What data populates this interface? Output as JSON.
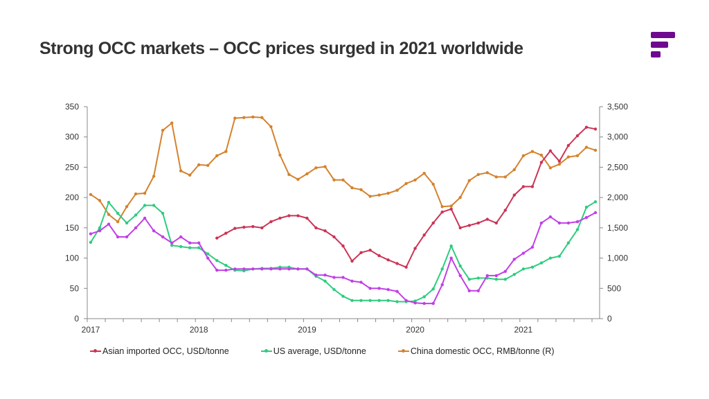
{
  "slide": {
    "title": "Strong OCC markets – OCC prices surged in 2021 worldwide",
    "logo": "brand-logo-icon",
    "brand_color": "#6f0a8f"
  },
  "chart_data": {
    "type": "line",
    "title": "",
    "xlabel": "",
    "ylabel": "",
    "y2label": "",
    "frequency": "monthly",
    "x_start": "2017-01",
    "x_end": "2021-09",
    "x_tick_labels": [
      "2017",
      "2018",
      "2019",
      "2020",
      "2021"
    ],
    "ylim": [
      0,
      350
    ],
    "y_ticks": [
      0,
      50,
      100,
      150,
      200,
      250,
      300,
      350
    ],
    "y_tick_labels": [
      "0",
      "50",
      "100",
      "150",
      "200",
      "250",
      "300",
      "350"
    ],
    "y2lim": [
      0,
      3500
    ],
    "y2_ticks": [
      0,
      500,
      1000,
      1500,
      2000,
      2500,
      3000,
      3500
    ],
    "y2_tick_labels": [
      "0",
      "500",
      "1,000",
      "1,500",
      "2,000",
      "2,500",
      "3,000",
      "3,500"
    ],
    "grid": false,
    "legend_position": "bottom",
    "x": [
      "2017-01",
      "2017-02",
      "2017-03",
      "2017-04",
      "2017-05",
      "2017-06",
      "2017-07",
      "2017-08",
      "2017-09",
      "2017-10",
      "2017-11",
      "2017-12",
      "2018-01",
      "2018-02",
      "2018-03",
      "2018-04",
      "2018-05",
      "2018-06",
      "2018-07",
      "2018-08",
      "2018-09",
      "2018-10",
      "2018-11",
      "2018-12",
      "2019-01",
      "2019-02",
      "2019-03",
      "2019-04",
      "2019-05",
      "2019-06",
      "2019-07",
      "2019-08",
      "2019-09",
      "2019-10",
      "2019-11",
      "2019-12",
      "2020-01",
      "2020-02",
      "2020-03",
      "2020-04",
      "2020-05",
      "2020-06",
      "2020-07",
      "2020-08",
      "2020-09",
      "2020-10",
      "2020-11",
      "2020-12",
      "2021-01",
      "2021-02",
      "2021-03",
      "2021-04",
      "2021-05",
      "2021-06",
      "2021-07",
      "2021-08",
      "2021-09"
    ],
    "series": [
      {
        "name": "China domestic OCC, RMB/tonne (R)",
        "axis": "right",
        "color": "#d4822e",
        "in_legend": true,
        "values": [
          2050,
          1950,
          1720,
          1600,
          1850,
          2060,
          2070,
          2350,
          3110,
          3230,
          2440,
          2370,
          2540,
          2530,
          2690,
          2760,
          3310,
          3320,
          3330,
          3320,
          3170,
          2700,
          2380,
          2300,
          2390,
          2490,
          2510,
          2290,
          2290,
          2160,
          2130,
          2020,
          2040,
          2070,
          2120,
          2230,
          2290,
          2400,
          2220,
          1850,
          1860,
          2000,
          2280,
          2380,
          2410,
          2340,
          2340,
          2460,
          2690,
          2760,
          2700,
          2490,
          2550,
          2670,
          2690,
          2830,
          2780
        ]
      },
      {
        "name": "Asian imported OCC, USD/tonne",
        "axis": "left",
        "color": "#cc3355",
        "in_legend": true,
        "values": [
          null,
          null,
          null,
          null,
          null,
          null,
          null,
          null,
          null,
          null,
          null,
          null,
          null,
          null,
          133,
          141,
          149,
          151,
          152,
          150,
          160,
          166,
          170,
          170,
          166,
          150,
          145,
          135,
          120,
          95,
          109,
          113,
          104,
          97,
          91,
          85,
          116,
          138,
          158,
          176,
          181,
          150,
          154,
          158,
          164,
          158,
          179,
          204,
          218,
          218,
          258,
          277,
          260,
          286,
          302,
          316,
          313
        ]
      },
      {
        "name": "US average, USD/tonne",
        "axis": "left",
        "color": "#2ecc7f",
        "in_legend": true,
        "values": [
          126,
          150,
          192,
          174,
          158,
          171,
          187,
          187,
          174,
          121,
          119,
          117,
          117,
          107,
          96,
          88,
          80,
          79,
          82,
          83,
          83,
          85,
          85,
          82,
          82,
          70,
          62,
          48,
          37,
          30,
          30,
          30,
          30,
          30,
          28,
          28,
          29,
          36,
          49,
          82,
          120,
          87,
          65,
          67,
          67,
          65,
          65,
          73,
          82,
          85,
          92,
          100,
          103,
          125,
          147,
          184,
          193
        ]
      },
      {
        "name": "",
        "axis": "left",
        "color": "#c23ee6",
        "in_legend": false,
        "values": [
          140,
          145,
          156,
          135,
          135,
          150,
          166,
          145,
          135,
          125,
          135,
          125,
          125,
          100,
          80,
          80,
          82,
          82,
          82,
          82,
          82,
          82,
          82,
          82,
          82,
          72,
          72,
          68,
          68,
          62,
          60,
          50,
          50,
          48,
          45,
          30,
          26,
          25,
          25,
          56,
          100,
          71,
          46,
          46,
          71,
          71,
          78,
          98,
          108,
          118,
          158,
          168,
          158,
          158,
          160,
          167,
          175
        ]
      }
    ],
    "legend": [
      {
        "label": "Asian imported OCC, USD/tonne",
        "color": "#cc3355"
      },
      {
        "label": "US average, USD/tonne",
        "color": "#2ecc7f"
      },
      {
        "label": "China domestic OCC, RMB/tonne (R)",
        "color": "#d4822e"
      }
    ]
  }
}
